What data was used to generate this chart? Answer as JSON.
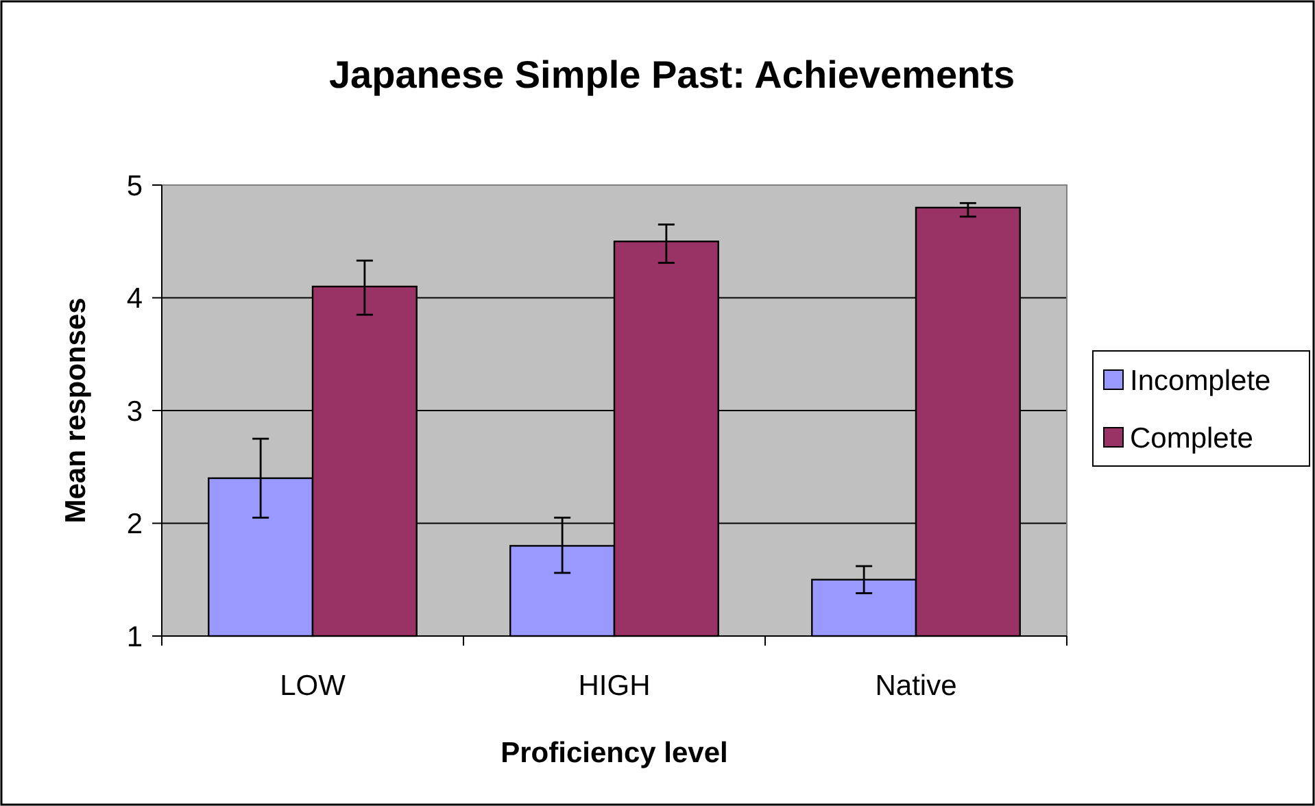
{
  "chart_data": {
    "type": "bar",
    "title": "Japanese Simple Past: Achievements",
    "xlabel": "Proficiency level",
    "ylabel": "Mean responses",
    "categories": [
      "LOW",
      "HIGH",
      "Native"
    ],
    "series": [
      {
        "name": "Incomplete",
        "color": "#9999ff",
        "values": [
          2.4,
          1.8,
          1.5
        ],
        "errors": [
          [
            2.05,
            2.75
          ],
          [
            1.56,
            2.05
          ],
          [
            1.38,
            1.62
          ]
        ]
      },
      {
        "name": "Complete",
        "color": "#993366",
        "values": [
          4.1,
          4.5,
          4.8
        ],
        "errors": [
          [
            3.85,
            4.33
          ],
          [
            4.31,
            4.65
          ],
          [
            4.72,
            4.84
          ]
        ]
      }
    ],
    "ylim": [
      1,
      5
    ],
    "yticks": [
      1,
      2,
      3,
      4,
      5
    ],
    "grid": "y",
    "legend": "right"
  }
}
